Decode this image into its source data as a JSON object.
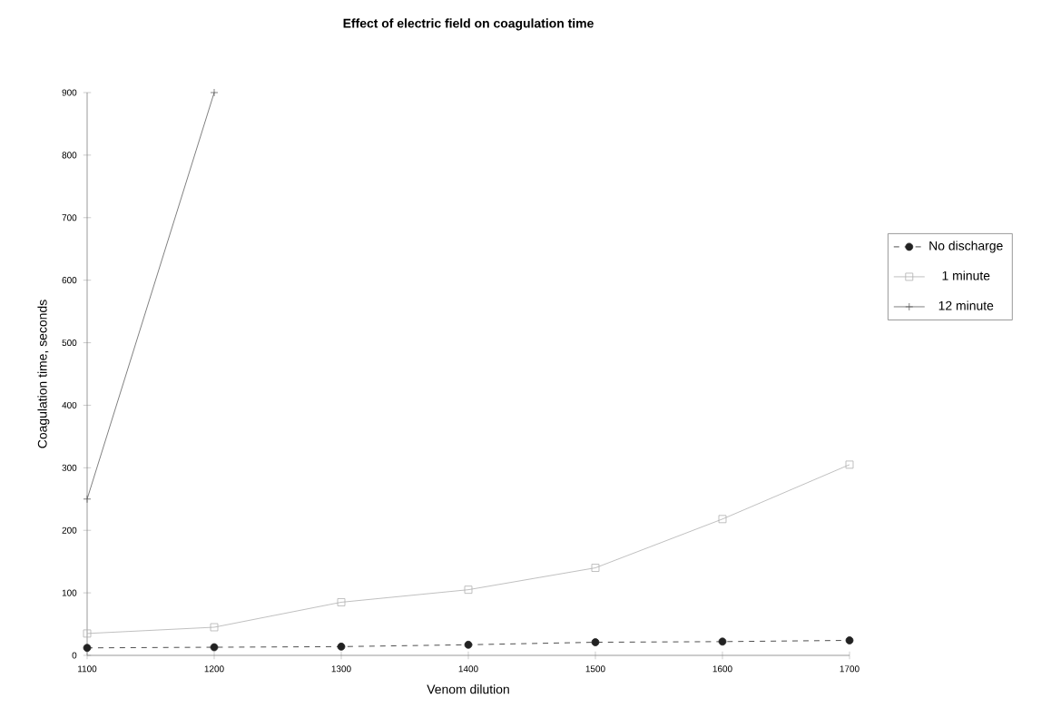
{
  "chart_data": {
    "type": "line",
    "title": "Effect of electric field on coagulation time",
    "xlabel": "Venom dilution",
    "ylabel": "Coagulation time, seconds",
    "categories": [
      "1100",
      "1200",
      "1300",
      "1400",
      "1500",
      "1600",
      "1700"
    ],
    "ylim": [
      0,
      900
    ],
    "yticks": [
      0,
      100,
      200,
      300,
      400,
      500,
      600,
      700,
      800,
      900
    ],
    "legend": "right",
    "grid": false,
    "series": [
      {
        "name": "No discharge",
        "color": "#222222",
        "marker": "circle",
        "line_style": "dashed",
        "values": [
          12,
          13,
          14,
          17,
          21,
          22,
          24
        ]
      },
      {
        "name": "1 minute",
        "color": "#b0b0b0",
        "marker": "square",
        "line_style": "solid",
        "values": [
          35,
          45,
          85,
          105,
          140,
          218,
          305
        ]
      },
      {
        "name": "12 minute",
        "color": "#606060",
        "marker": "cross",
        "line_style": "solid",
        "values": [
          250,
          900,
          null,
          null,
          null,
          null,
          null
        ]
      }
    ]
  }
}
